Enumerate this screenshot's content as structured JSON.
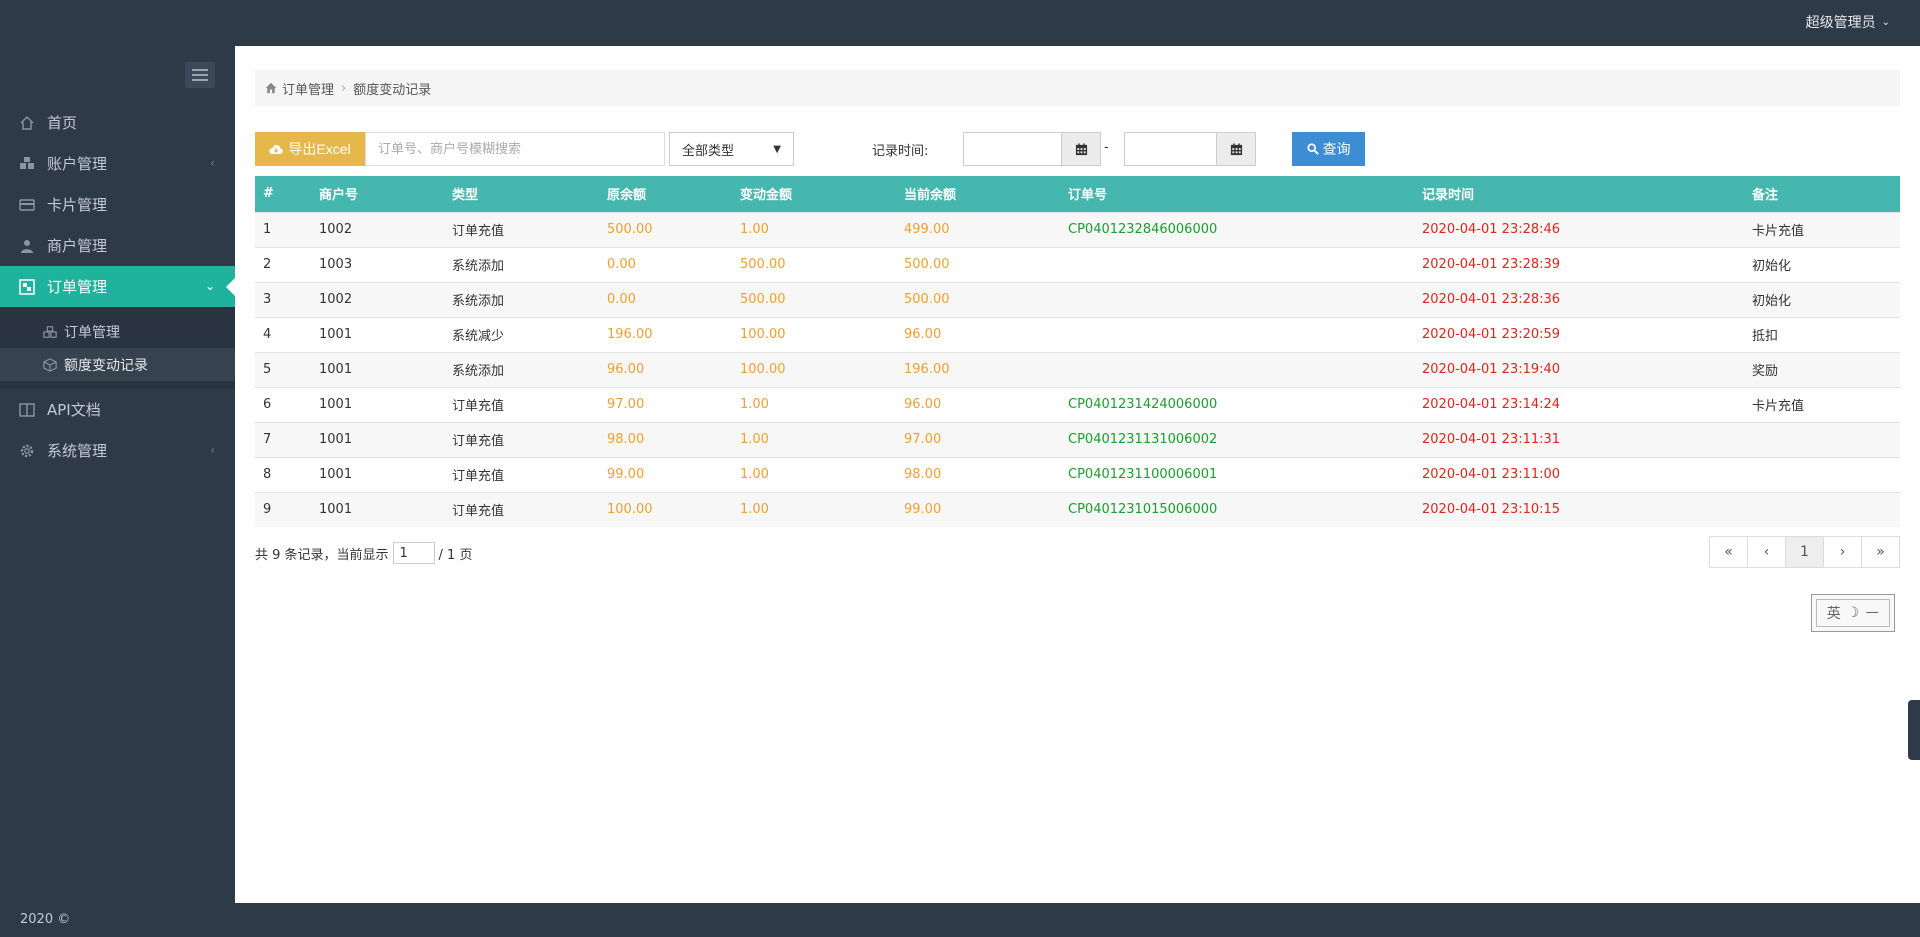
{
  "header": {
    "user_label": "超级管理员"
  },
  "sidebar": {
    "items": [
      {
        "label": "首页",
        "icon": "home-icon"
      },
      {
        "label": "账户管理",
        "icon": "cubes-icon"
      },
      {
        "label": "卡片管理",
        "icon": "credit-card-icon"
      },
      {
        "label": "商户管理",
        "icon": "user-icon"
      },
      {
        "label": "订单管理",
        "icon": "cube-icon"
      },
      {
        "label": "API文档",
        "icon": "columns-icon"
      },
      {
        "label": "系统管理",
        "icon": "gear-icon"
      }
    ],
    "sub_items": [
      {
        "label": "订单管理",
        "icon": "cubes-icon"
      },
      {
        "label": "额度变动记录",
        "icon": "cube-icon"
      }
    ]
  },
  "footer": {
    "text": "2020 ©"
  },
  "breadcrumb": {
    "parent": "订单管理",
    "current": "额度变动记录"
  },
  "toolbar": {
    "export_label": "导出Excel",
    "search_placeholder": "订单号、商户号模糊搜索",
    "type_select_value": "全部类型",
    "time_label": "记录时间:",
    "date_separator": "-",
    "query_label": "查询"
  },
  "table": {
    "headers": [
      "#",
      "商户号",
      "类型",
      "原余额",
      "变动金额",
      "当前余额",
      "订单号",
      "记录时间",
      "备注"
    ],
    "rows": [
      [
        "1",
        "1002",
        "订单充值",
        "500.00",
        "1.00",
        "499.00",
        "CP0401232846006000",
        "2020-04-01 23:28:46",
        "卡片充值"
      ],
      [
        "2",
        "1003",
        "系统添加",
        "0.00",
        "500.00",
        "500.00",
        "",
        "2020-04-01 23:28:39",
        "初始化"
      ],
      [
        "3",
        "1002",
        "系统添加",
        "0.00",
        "500.00",
        "500.00",
        "",
        "2020-04-01 23:28:36",
        "初始化"
      ],
      [
        "4",
        "1001",
        "系统减少",
        "196.00",
        "100.00",
        "96.00",
        "",
        "2020-04-01 23:20:59",
        "抵扣"
      ],
      [
        "5",
        "1001",
        "系统添加",
        "96.00",
        "100.00",
        "196.00",
        "",
        "2020-04-01 23:19:40",
        "奖励"
      ],
      [
        "6",
        "1001",
        "订单充值",
        "97.00",
        "1.00",
        "96.00",
        "CP0401231424006000",
        "2020-04-01 23:14:24",
        "卡片充值"
      ],
      [
        "7",
        "1001",
        "订单充值",
        "98.00",
        "1.00",
        "97.00",
        "CP0401231131006002",
        "2020-04-01 23:11:31",
        ""
      ],
      [
        "8",
        "1001",
        "订单充值",
        "99.00",
        "1.00",
        "98.00",
        "CP0401231100006001",
        "2020-04-01 23:11:00",
        ""
      ],
      [
        "9",
        "1001",
        "订单充值",
        "100.00",
        "1.00",
        "99.00",
        "CP0401231015006000",
        "2020-04-01 23:10:15",
        ""
      ]
    ]
  },
  "pagination": {
    "prefix": "共 9 条记录，当前显示",
    "current_page": "1",
    "suffix": "/ 1 页",
    "first": "«",
    "prev": "‹",
    "page": "1",
    "next": "›",
    "last": "»"
  },
  "ime": {
    "lang": "英",
    "moon": "☽",
    "punct": "㇐"
  },
  "colors": {
    "accent": "#1fb39e",
    "table_header": "#46b7ae",
    "export": "#e6b84b",
    "query": "#3c8dd4",
    "amount": "#f0a030",
    "order_no": "#1a9e2d",
    "time": "#e0251b"
  }
}
